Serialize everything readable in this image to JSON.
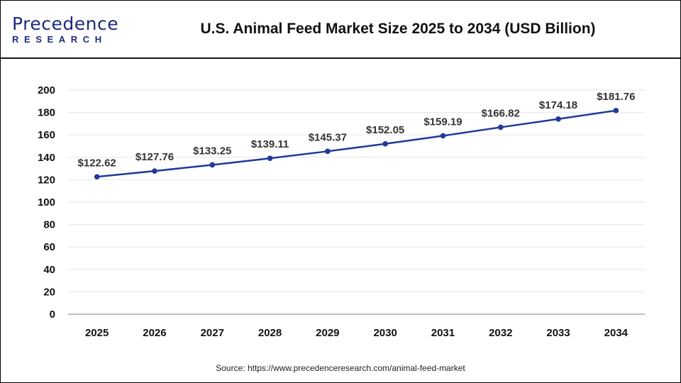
{
  "header": {
    "logo_text": "Precedence",
    "logo_subtext": "RESEARCH",
    "title": "U.S. Animal Feed Market Size 2025 to 2034 (USD Billion)"
  },
  "chart_data": {
    "type": "line",
    "title": "U.S. Animal Feed Market Size 2025 to 2034 (USD Billion)",
    "categories": [
      "2025",
      "2026",
      "2027",
      "2028",
      "2029",
      "2030",
      "2031",
      "2032",
      "2033",
      "2034"
    ],
    "values": [
      122.62,
      127.76,
      133.25,
      139.11,
      145.37,
      152.05,
      159.19,
      166.82,
      174.18,
      181.76
    ],
    "data_labels": [
      "$122.62",
      "$127.76",
      "$133.25",
      "$139.11",
      "$145.37",
      "$152.05",
      "$159.19",
      "$166.82",
      "$174.18",
      "$181.76"
    ],
    "ylim": [
      0,
      200
    ],
    "yticks": [
      0,
      20,
      40,
      60,
      80,
      100,
      120,
      140,
      160,
      180,
      200
    ],
    "grid": true,
    "line_color": "#1f3a9a",
    "xlabel": "",
    "ylabel": ""
  },
  "footer": {
    "source": "Source: https://www.precedenceresearch.com/animal-feed-market"
  }
}
